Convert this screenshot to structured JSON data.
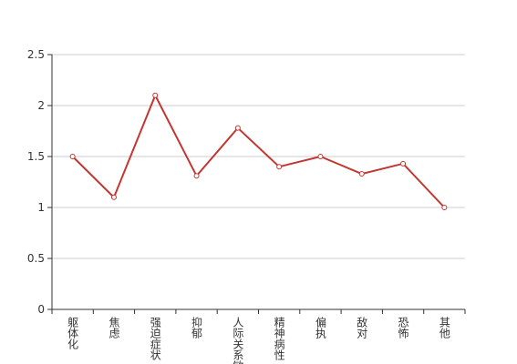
{
  "chart_data": {
    "type": "line",
    "categories": [
      "躯体化",
      "焦虑",
      "强迫症状",
      "抑郁",
      "人际关系敏感",
      "精神病性",
      "偏执",
      "敌对",
      "恐怖",
      "其他"
    ],
    "series": [
      {
        "color": "#c23531",
        "values": [
          1.5,
          1.1,
          2.1,
          1.31,
          1.78,
          1.4,
          1.5,
          1.33,
          1.43,
          1.0
        ]
      }
    ],
    "ylim": [
      0,
      2.5
    ],
    "yticks": [
      0,
      0.5,
      1,
      1.5,
      2,
      2.5
    ],
    "grid": true
  }
}
